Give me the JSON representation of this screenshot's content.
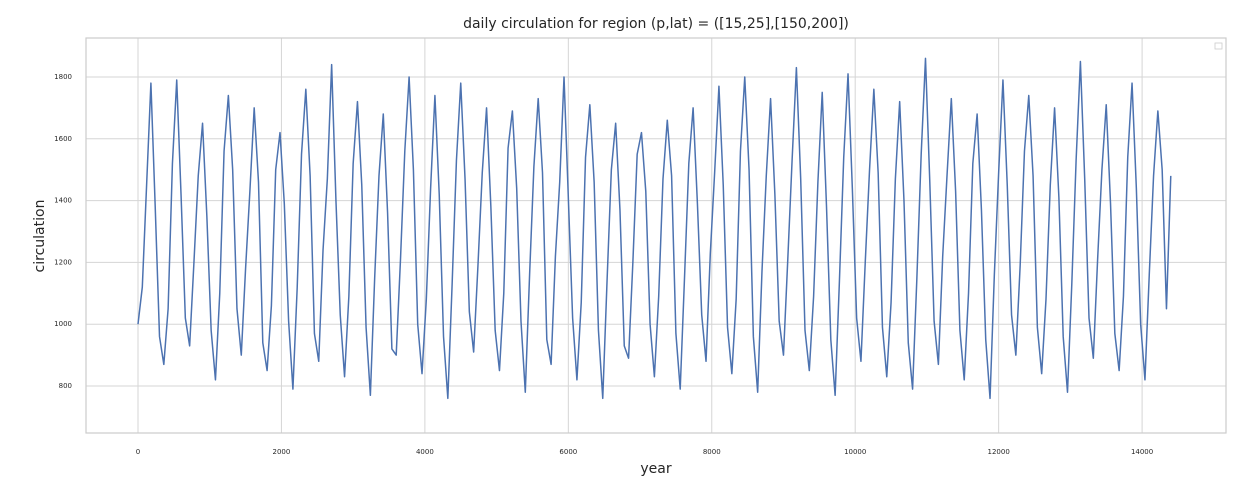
{
  "chart_data": {
    "type": "line",
    "title": "daily circulation for region (p,lat) = ([15,25],[150,200])",
    "x_label": "year",
    "y_label": "circulation",
    "xlim": [
      -725,
      15170
    ],
    "ylim": [
      648,
      1926
    ],
    "xticks": [
      0,
      2000,
      4000,
      6000,
      8000,
      10000,
      12000,
      14000
    ],
    "yticks": [
      800,
      1000,
      1200,
      1400,
      1600,
      1800
    ],
    "grid": true,
    "x": [
      0,
      60,
      120,
      180,
      240,
      300,
      360,
      420,
      480,
      540,
      600,
      660,
      720,
      780,
      840,
      900,
      960,
      1020,
      1080,
      1140,
      1200,
      1260,
      1320,
      1380,
      1440,
      1500,
      1560,
      1620,
      1680,
      1740,
      1800,
      1860,
      1920,
      1980,
      2040,
      2100,
      2160,
      2220,
      2280,
      2340,
      2400,
      2460,
      2520,
      2580,
      2640,
      2700,
      2760,
      2820,
      2880,
      2940,
      3000,
      3060,
      3120,
      3180,
      3240,
      3300,
      3360,
      3420,
      3480,
      3540,
      3600,
      3660,
      3720,
      3780,
      3840,
      3900,
      3960,
      4020,
      4080,
      4140,
      4200,
      4260,
      4320,
      4380,
      4440,
      4500,
      4560,
      4620,
      4680,
      4740,
      4800,
      4860,
      4920,
      4980,
      5040,
      5100,
      5160,
      5220,
      5280,
      5340,
      5400,
      5460,
      5520,
      5580,
      5640,
      5700,
      5760,
      5820,
      5880,
      5940,
      6000,
      6060,
      6120,
      6180,
      6240,
      6300,
      6360,
      6420,
      6480,
      6540,
      6600,
      6660,
      6720,
      6780,
      6840,
      6900,
      6960,
      7020,
      7080,
      7140,
      7200,
      7260,
      7320,
      7380,
      7440,
      7500,
      7560,
      7620,
      7680,
      7740,
      7800,
      7860,
      7920,
      7980,
      8040,
      8100,
      8160,
      8220,
      8280,
      8340,
      8400,
      8460,
      8520,
      8580,
      8640,
      8700,
      8760,
      8820,
      8880,
      8940,
      9000,
      9060,
      9120,
      9180,
      9240,
      9300,
      9360,
      9420,
      9480,
      9540,
      9600,
      9660,
      9720,
      9780,
      9840,
      9900,
      9960,
      10020,
      10080,
      10140,
      10200,
      10260,
      10320,
      10380,
      10440,
      10500,
      10560,
      10620,
      10680,
      10740,
      10800,
      10860,
      10920,
      10980,
      11040,
      11100,
      11160,
      11220,
      11280,
      11340,
      11400,
      11460,
      11520,
      11580,
      11640,
      11700,
      11760,
      11820,
      11880,
      11940,
      12000,
      12060,
      12120,
      12180,
      12240,
      12300,
      12360,
      12420,
      12480,
      12540,
      12600,
      12660,
      12720,
      12780,
      12840,
      12900,
      12960,
      13020,
      13080,
      13140,
      13200,
      13260,
      13320,
      13380,
      13440,
      13500,
      13560,
      13620,
      13680,
      13740,
      13800,
      13860,
      13920,
      13980,
      14040,
      14100,
      14160,
      14220,
      14280,
      14340,
      14400
    ],
    "series": [
      {
        "color": "#4c72b0",
        "values": [
          1000,
          1120,
          1450,
          1780,
          1380,
          960,
          870,
          1050,
          1520,
          1790,
          1420,
          1020,
          930,
          1200,
          1480,
          1650,
          1350,
          980,
          820,
          1100,
          1560,
          1740,
          1500,
          1050,
          900,
          1180,
          1430,
          1700,
          1460,
          940,
          850,
          1060,
          1500,
          1620,
          1390,
          1010,
          790,
          1120,
          1550,
          1760,
          1480,
          970,
          880,
          1240,
          1470,
          1840,
          1400,
          1030,
          830,
          1090,
          1520,
          1720,
          1450,
          990,
          770,
          1150,
          1480,
          1680,
          1360,
          920,
          900,
          1210,
          1560,
          1800,
          1500,
          1000,
          840,
          1080,
          1440,
          1740,
          1420,
          960,
          760,
          1130,
          1530,
          1780,
          1470,
          1040,
          910,
          1190,
          1490,
          1700,
          1380,
          980,
          850,
          1100,
          1570,
          1690,
          1440,
          1010,
          780,
          1160,
          1510,
          1730,
          1490,
          950,
          870,
          1220,
          1460,
          1800,
          1410,
          1020,
          820,
          1070,
          1540,
          1710,
          1460,
          980,
          760,
          1140,
          1500,
          1650,
          1370,
          930,
          890,
          1200,
          1550,
          1620,
          1430,
          1000,
          830,
          1090,
          1470,
          1660,
          1480,
          970,
          790,
          1150,
          1520,
          1700,
          1390,
          1030,
          880,
          1230,
          1490,
          1770,
          1450,
          990,
          840,
          1080,
          1560,
          1800,
          1500,
          960,
          780,
          1170,
          1480,
          1730,
          1420,
          1010,
          900,
          1210,
          1530,
          1830,
          1470,
          980,
          850,
          1090,
          1460,
          1750,
          1380,
          950,
          770,
          1140,
          1540,
          1810,
          1440,
          1020,
          880,
          1200,
          1500,
          1760,
          1490,
          990,
          830,
          1070,
          1470,
          1720,
          1400,
          940,
          790,
          1150,
          1550,
          1860,
          1460,
          1010,
          870,
          1220,
          1480,
          1730,
          1430,
          980,
          820,
          1100,
          1520,
          1680,
          1370,
          950,
          760,
          1160,
          1490,
          1790,
          1450,
          1030,
          900,
          1190,
          1560,
          1740,
          1480,
          990,
          840,
          1080,
          1450,
          1700,
          1410,
          960,
          780,
          1130,
          1530,
          1850,
          1470,
          1020,
          890,
          1210,
          1500,
          1710,
          1390,
          970,
          850,
          1090,
          1540,
          1780,
          1440,
          1000,
          820,
          1160,
          1480,
          1690,
          1500,
          1050,
          1480
        ]
      }
    ]
  }
}
